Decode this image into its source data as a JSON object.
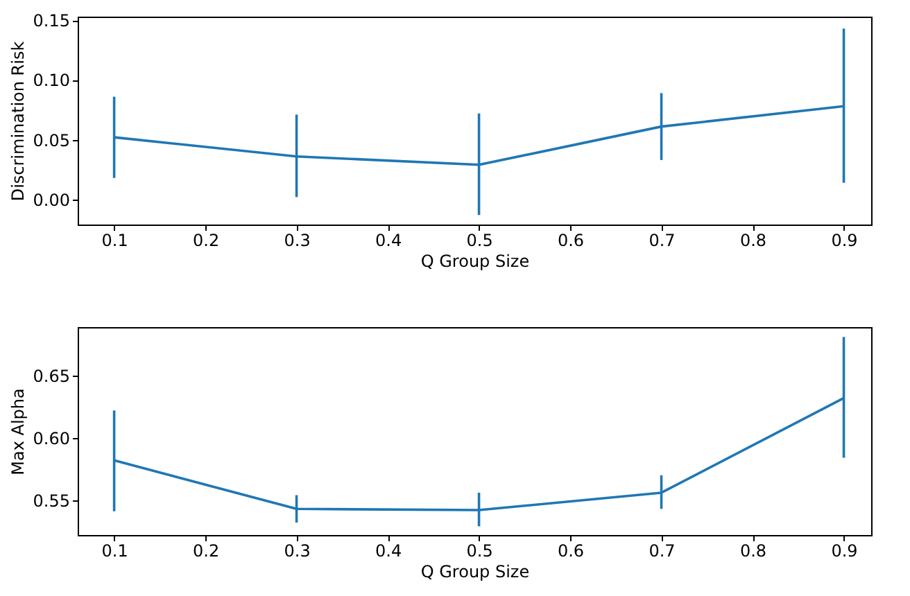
{
  "chart_data": [
    {
      "type": "line",
      "xlabel": "Q Group Size",
      "ylabel": "Discrimination Risk",
      "x": [
        0.1,
        0.3,
        0.5,
        0.7,
        0.9
      ],
      "series": [
        {
          "color": "#1f77b4",
          "values": [
            0.052,
            0.036,
            0.029,
            0.061,
            0.078
          ],
          "errors": [
            [
              0.018,
              0.086
            ],
            [
              0.002,
              0.071
            ],
            [
              -0.013,
              0.072
            ],
            [
              0.033,
              0.089
            ],
            [
              0.014,
              0.143
            ]
          ]
        }
      ],
      "xlim": [
        0.06,
        0.93
      ],
      "xticks": [
        0.1,
        0.2,
        0.3,
        0.4,
        0.5,
        0.6,
        0.7,
        0.8,
        0.9
      ],
      "ylim": [
        -0.021,
        0.153
      ],
      "yticks": [
        {
          "value": 0,
          "label": "0.00"
        },
        0.05,
        {
          "value": 0.1,
          "label": "0.10"
        },
        0.15
      ],
      "grid": false,
      "marker": "none",
      "line_style": "solid"
    },
    {
      "type": "line",
      "xlabel": "Q Group Size",
      "ylabel": "Max Alpha",
      "x": [
        0.1,
        0.3,
        0.5,
        0.7,
        0.9
      ],
      "series": [
        {
          "color": "#1f77b4",
          "values": [
            0.582,
            0.543,
            0.542,
            0.556,
            0.632
          ],
          "errors": [
            [
              0.541,
              0.622
            ],
            [
              0.532,
              0.554
            ],
            [
              0.529,
              0.556
            ],
            [
              0.543,
              0.57
            ],
            [
              0.584,
              0.681
            ]
          ]
        }
      ],
      "xlim": [
        0.06,
        0.93
      ],
      "xticks": [
        0.1,
        0.2,
        0.3,
        0.4,
        0.5,
        0.6,
        0.7,
        0.8,
        0.9
      ],
      "ylim": [
        0.522,
        0.689
      ],
      "yticks": [
        0.55,
        {
          "value": 0.6,
          "label": "0.60"
        },
        0.65
      ],
      "grid": false,
      "marker": "none",
      "line_style": "solid"
    }
  ]
}
